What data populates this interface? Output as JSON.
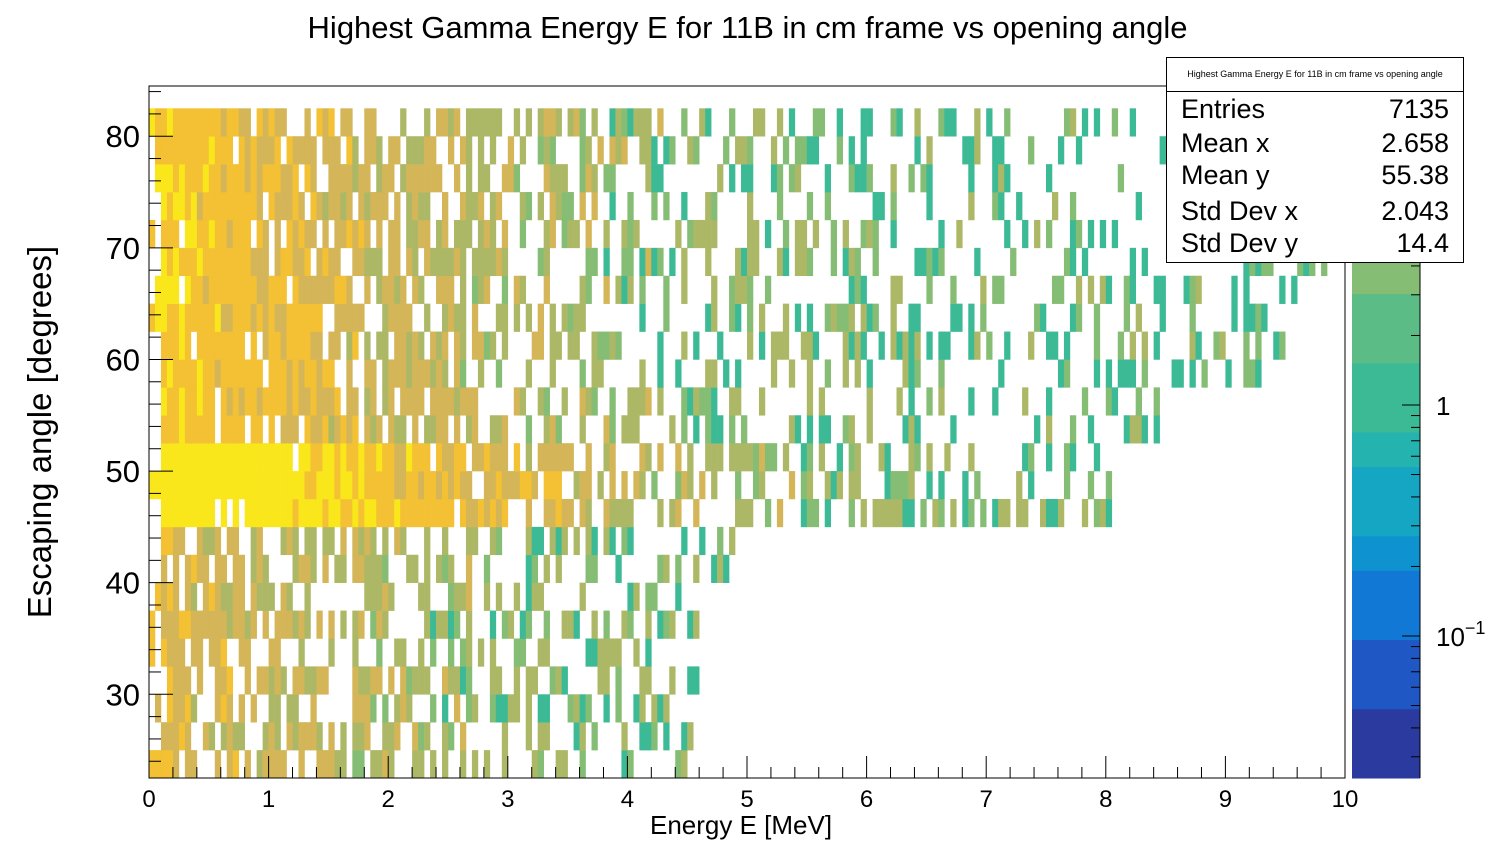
{
  "chart_data": {
    "type": "heatmap",
    "title": "Highest Gamma Energy E for 11B in cm frame vs opening angle",
    "xlabel": "Energy E [MeV]",
    "ylabel": "Escaping angle [degrees]",
    "xlim": [
      0,
      10
    ],
    "ylim": [
      22.5,
      84.5
    ],
    "x_ticks": [
      0,
      1,
      2,
      3,
      4,
      5,
      6,
      7,
      8,
      9,
      10
    ],
    "y_ticks": [
      30,
      40,
      50,
      60,
      70,
      80
    ],
    "colorbar": {
      "scale": "log",
      "tick_labels": [
        "10^-1",
        "1"
      ],
      "palette": [
        "#2a3a9e",
        "#1f57c4",
        "#1178d6",
        "#0e93d0",
        "#14a6c3",
        "#24b3ae",
        "#3cba95",
        "#5bbd85",
        "#85bd74",
        "#adb866",
        "#d4b558",
        "#f3c133",
        "#f9e71c"
      ]
    },
    "x_bin_width_mev": 0.05,
    "y_bin_width_deg": 2.5,
    "density_note_regions": [
      {
        "x": [
          0.1,
          2.4
        ],
        "y": [
          45,
          52
        ],
        "level": "highest"
      },
      {
        "x": [
          0.1,
          5.2
        ],
        "y": [
          45,
          52
        ],
        "level": "high"
      },
      {
        "x": [
          0.1,
          9.0
        ],
        "y": [
          57,
          82
        ],
        "level": "medium"
      },
      {
        "x": [
          0.1,
          4.9
        ],
        "y": [
          22.5,
          45
        ],
        "level": "low"
      }
    ],
    "stats": {
      "title": "Highest Gamma Energy E for 11B in cm frame vs opening angle",
      "entries": {
        "label": "Entries",
        "value": "7135"
      },
      "mean_x": {
        "label": "Mean x",
        "value": "2.658"
      },
      "mean_y": {
        "label": "Mean y",
        "value": "55.38"
      },
      "std_x": {
        "label": "Std Dev x",
        "value": "2.043"
      },
      "std_y": {
        "label": "Std Dev y",
        "value": "14.4"
      }
    }
  }
}
